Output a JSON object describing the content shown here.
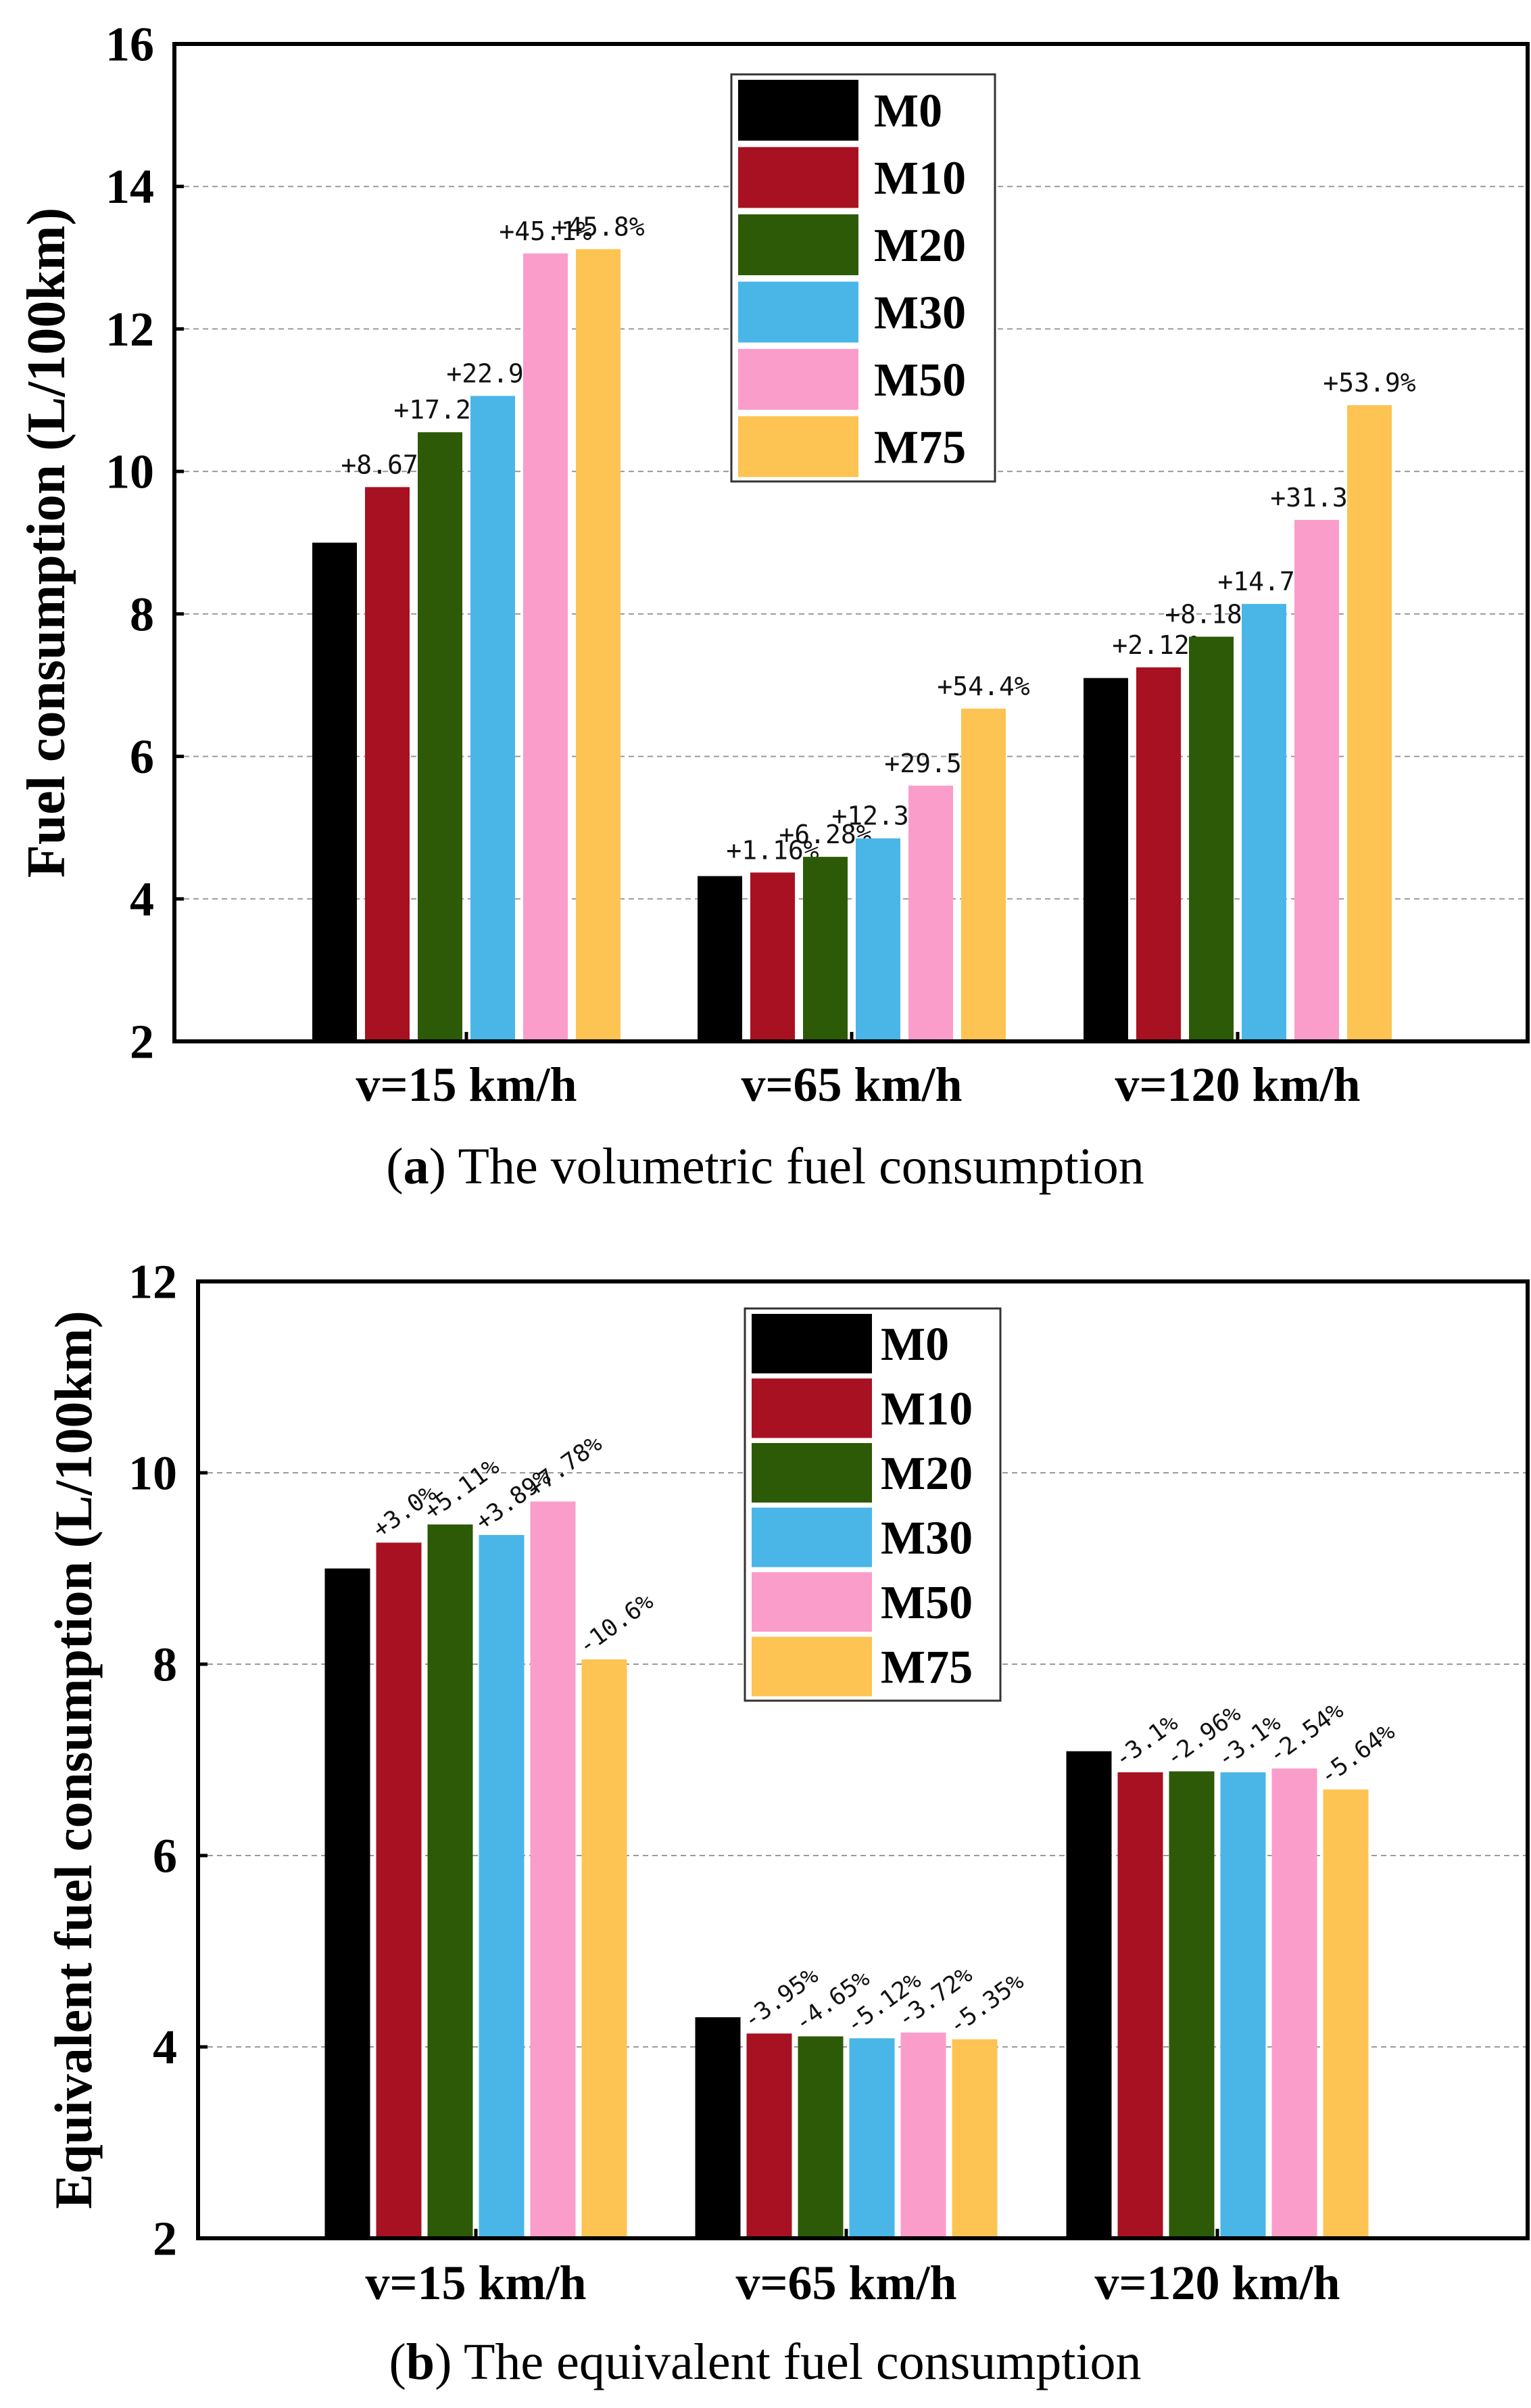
{
  "charts": [
    {
      "panel": "a",
      "caption_letter": "a",
      "caption_text": " The volumetric fuel consumption",
      "chart_data": {
        "type": "bar",
        "title": "",
        "xlabel": "",
        "ylabel": "Fuel consumption (L/100km)",
        "ylim": [
          2,
          16
        ],
        "yticks": [
          2,
          4,
          6,
          8,
          10,
          12,
          14,
          16
        ],
        "grid": true,
        "legend_position": "top-center",
        "categories": [
          "v=15 km/h",
          "v=65 km/h",
          "v=120 km/h"
        ],
        "series": [
          {
            "name": "M0",
            "color": "#000000",
            "values": [
              9.0,
              4.32,
              7.1
            ],
            "labels": [
              "",
              "",
              ""
            ]
          },
          {
            "name": "M10",
            "color": "#A81122",
            "values": [
              9.78,
              4.37,
              7.25
            ],
            "labels": [
              "+8.67%",
              "+1.16%",
              "+2.12%"
            ]
          },
          {
            "name": "M20",
            "color": "#2D5A06",
            "values": [
              10.55,
              4.59,
              7.68
            ],
            "labels": [
              "+17.2%",
              "+6.28%",
              "+8.18%"
            ]
          },
          {
            "name": "M30",
            "color": "#4AB6E8",
            "values": [
              11.06,
              4.85,
              8.14
            ],
            "labels": [
              "+22.9%",
              "+12.3%",
              "+14.7%"
            ]
          },
          {
            "name": "M50",
            "color": "#FA9DCB",
            "values": [
              13.06,
              5.59,
              9.32
            ],
            "labels": [
              "+45.1%",
              "+29.5%",
              "+31.3%"
            ]
          },
          {
            "name": "M75",
            "color": "#FDC453",
            "values": [
              13.12,
              6.67,
              10.93
            ],
            "labels": [
              "+45.8%",
              "+54.4%",
              "+53.9%"
            ]
          }
        ]
      }
    },
    {
      "panel": "b",
      "caption_letter": "b",
      "caption_text": " The equivalent fuel consumption",
      "chart_data": {
        "type": "bar",
        "title": "",
        "xlabel": "",
        "ylabel": "Equivalent fuel consumption (L/100km)",
        "ylim": [
          2,
          12
        ],
        "yticks": [
          2,
          4,
          6,
          8,
          10,
          12
        ],
        "grid": true,
        "legend_position": "top-center",
        "categories": [
          "v=15 km/h",
          "v=65 km/h",
          "v=120 km/h"
        ],
        "series": [
          {
            "name": "M0",
            "color": "#000000",
            "values": [
              9.0,
              4.31,
              7.09
            ],
            "labels": [
              "",
              "",
              ""
            ]
          },
          {
            "name": "M10",
            "color": "#A81122",
            "values": [
              9.27,
              4.14,
              6.87
            ],
            "labels": [
              "+3.0%",
              "-3.95%",
              "-3.1%"
            ]
          },
          {
            "name": "M20",
            "color": "#2D5A06",
            "values": [
              9.46,
              4.11,
              6.88
            ],
            "labels": [
              "+5.11%",
              "-4.65%",
              "-2.96%"
            ]
          },
          {
            "name": "M30",
            "color": "#4AB6E8",
            "values": [
              9.35,
              4.09,
              6.87
            ],
            "labels": [
              "+3.89%",
              "-5.12%",
              "-3.1%"
            ]
          },
          {
            "name": "M50",
            "color": "#FA9DCB",
            "values": [
              9.7,
              4.15,
              6.91
            ],
            "labels": [
              "+7.78%",
              "-3.72%",
              "-2.54%"
            ]
          },
          {
            "name": "M75",
            "color": "#FDC453",
            "values": [
              8.05,
              4.08,
              6.69
            ],
            "labels": [
              "-10.6%",
              "-5.35%",
              "-5.64%"
            ]
          }
        ]
      }
    }
  ]
}
